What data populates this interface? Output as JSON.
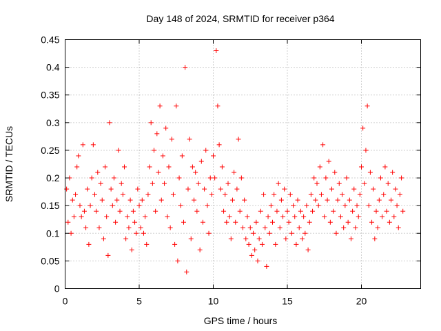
{
  "chart_data": {
    "type": "scatter",
    "title": "Day 148 of 2024, SRMTID for receiver p364",
    "xlabel": "GPS time / hours",
    "ylabel": "SRMTID / TECUs",
    "xlim": [
      0,
      24
    ],
    "ylim": [
      0,
      0.45
    ],
    "x_ticks": [
      0,
      5,
      10,
      15,
      20
    ],
    "x_tick_labels": [
      "0",
      "5",
      "10",
      "15",
      "20"
    ],
    "y_ticks": [
      0,
      0.05,
      0.1,
      0.15,
      0.2,
      0.25,
      0.3,
      0.35,
      0.4,
      0.45
    ],
    "y_tick_labels": [
      "0",
      "0.05",
      "0.1",
      "0.15",
      "0.2",
      "0.25",
      "0.3",
      "0.35",
      "0.4",
      "0.45"
    ],
    "grid": true,
    "marker": "plus",
    "color": "#ff0000",
    "series": [
      {
        "name": "SRMTID",
        "points": [
          [
            0.1,
            0.18
          ],
          [
            0.2,
            0.12
          ],
          [
            0.3,
            0.2
          ],
          [
            0.4,
            0.1
          ],
          [
            0.5,
            0.16
          ],
          [
            0.6,
            0.13
          ],
          [
            0.7,
            0.17
          ],
          [
            0.8,
            0.22
          ],
          [
            0.9,
            0.24
          ],
          [
            1.0,
            0.15
          ],
          [
            1.1,
            0.13
          ],
          [
            1.2,
            0.26
          ],
          [
            1.3,
            0.14
          ],
          [
            1.4,
            0.11
          ],
          [
            1.5,
            0.18
          ],
          [
            1.6,
            0.08
          ],
          [
            1.7,
            0.15
          ],
          [
            1.8,
            0.2
          ],
          [
            1.9,
            0.26
          ],
          [
            2.0,
            0.17
          ],
          [
            2.1,
            0.14
          ],
          [
            2.2,
            0.21
          ],
          [
            2.3,
            0.11
          ],
          [
            2.4,
            0.19
          ],
          [
            2.5,
            0.16
          ],
          [
            2.6,
            0.09
          ],
          [
            2.7,
            0.22
          ],
          [
            2.8,
            0.13
          ],
          [
            2.9,
            0.06
          ],
          [
            3.0,
            0.3
          ],
          [
            3.1,
            0.18
          ],
          [
            3.2,
            0.15
          ],
          [
            3.3,
            0.2
          ],
          [
            3.4,
            0.12
          ],
          [
            3.5,
            0.16
          ],
          [
            3.6,
            0.25
          ],
          [
            3.7,
            0.14
          ],
          [
            3.8,
            0.19
          ],
          [
            3.9,
            0.17
          ],
          [
            4.0,
            0.22
          ],
          [
            4.1,
            0.09
          ],
          [
            4.2,
            0.13
          ],
          [
            4.3,
            0.11
          ],
          [
            4.4,
            0.16
          ],
          [
            4.5,
            0.07
          ],
          [
            4.6,
            0.14
          ],
          [
            4.7,
            0.12
          ],
          [
            4.8,
            0.1
          ],
          [
            4.9,
            0.18
          ],
          [
            5.0,
            0.15
          ],
          [
            5.1,
            0.11
          ],
          [
            5.2,
            0.16
          ],
          [
            5.3,
            0.1
          ],
          [
            5.4,
            0.13
          ],
          [
            5.5,
            0.08
          ],
          [
            5.6,
            0.17
          ],
          [
            5.7,
            0.22
          ],
          [
            5.8,
            0.3
          ],
          [
            5.9,
            0.19
          ],
          [
            6.0,
            0.25
          ],
          [
            6.1,
            0.14
          ],
          [
            6.2,
            0.28
          ],
          [
            6.3,
            0.21
          ],
          [
            6.4,
            0.33
          ],
          [
            6.5,
            0.16
          ],
          [
            6.6,
            0.24
          ],
          [
            6.7,
            0.19
          ],
          [
            6.8,
            0.29
          ],
          [
            6.9,
            0.13
          ],
          [
            7.0,
            0.22
          ],
          [
            7.1,
            0.11
          ],
          [
            7.2,
            0.27
          ],
          [
            7.3,
            0.17
          ],
          [
            7.4,
            0.08
          ],
          [
            7.5,
            0.33
          ],
          [
            7.6,
            0.05
          ],
          [
            7.7,
            0.2
          ],
          [
            7.8,
            0.15
          ],
          [
            7.9,
            0.24
          ],
          [
            8.0,
            0.12
          ],
          [
            8.1,
            0.4
          ],
          [
            8.2,
            0.03
          ],
          [
            8.3,
            0.18
          ],
          [
            8.4,
            0.27
          ],
          [
            8.5,
            0.09
          ],
          [
            8.6,
            0.22
          ],
          [
            8.7,
            0.16
          ],
          [
            8.8,
            0.21
          ],
          [
            8.9,
            0.14
          ],
          [
            9.0,
            0.19
          ],
          [
            9.1,
            0.07
          ],
          [
            9.2,
            0.23
          ],
          [
            9.3,
            0.12
          ],
          [
            9.4,
            0.18
          ],
          [
            9.5,
            0.25
          ],
          [
            9.6,
            0.15
          ],
          [
            9.7,
            0.1
          ],
          [
            9.8,
            0.2
          ],
          [
            9.9,
            0.17
          ],
          [
            10.0,
            0.24
          ],
          [
            10.1,
            0.2
          ],
          [
            10.2,
            0.43
          ],
          [
            10.3,
            0.33
          ],
          [
            10.4,
            0.26
          ],
          [
            10.5,
            0.18
          ],
          [
            10.6,
            0.22
          ],
          [
            10.7,
            0.14
          ],
          [
            10.8,
            0.17
          ],
          [
            10.9,
            0.12
          ],
          [
            11.0,
            0.19
          ],
          [
            11.1,
            0.13
          ],
          [
            11.2,
            0.09
          ],
          [
            11.3,
            0.16
          ],
          [
            11.4,
            0.21
          ],
          [
            11.5,
            0.12
          ],
          [
            11.6,
            0.18
          ],
          [
            11.7,
            0.27
          ],
          [
            11.8,
            0.14
          ],
          [
            11.9,
            0.2
          ],
          [
            12.0,
            0.11
          ],
          [
            12.1,
            0.16
          ],
          [
            12.2,
            0.09
          ],
          [
            12.3,
            0.13
          ],
          [
            12.4,
            0.08
          ],
          [
            12.5,
            0.11
          ],
          [
            12.6,
            0.06
          ],
          [
            12.7,
            0.1
          ],
          [
            12.8,
            0.07
          ],
          [
            12.9,
            0.12
          ],
          [
            13.0,
            0.05
          ],
          [
            13.1,
            0.09
          ],
          [
            13.2,
            0.14
          ],
          [
            13.3,
            0.08
          ],
          [
            13.4,
            0.17
          ],
          [
            13.5,
            0.11
          ],
          [
            13.6,
            0.04
          ],
          [
            13.7,
            0.13
          ],
          [
            13.8,
            0.1
          ],
          [
            13.9,
            0.15
          ],
          [
            14.0,
            0.12
          ],
          [
            14.1,
            0.17
          ],
          [
            14.2,
            0.08
          ],
          [
            14.3,
            0.14
          ],
          [
            14.4,
            0.19
          ],
          [
            14.5,
            0.11
          ],
          [
            14.6,
            0.16
          ],
          [
            14.7,
            0.13
          ],
          [
            14.8,
            0.18
          ],
          [
            14.9,
            0.09
          ],
          [
            15.0,
            0.14
          ],
          [
            15.1,
            0.12
          ],
          [
            15.2,
            0.17
          ],
          [
            15.3,
            0.1
          ],
          [
            15.4,
            0.15
          ],
          [
            15.5,
            0.13
          ],
          [
            15.6,
            0.08
          ],
          [
            15.7,
            0.16
          ],
          [
            15.8,
            0.11
          ],
          [
            15.9,
            0.14
          ],
          [
            16.0,
            0.09
          ],
          [
            16.1,
            0.13
          ],
          [
            16.2,
            0.1
          ],
          [
            16.3,
            0.15
          ],
          [
            16.4,
            0.07
          ],
          [
            16.5,
            0.12
          ],
          [
            16.6,
            0.17
          ],
          [
            16.7,
            0.14
          ],
          [
            16.8,
            0.2
          ],
          [
            16.9,
            0.16
          ],
          [
            17.0,
            0.19
          ],
          [
            17.1,
            0.15
          ],
          [
            17.2,
            0.22
          ],
          [
            17.3,
            0.17
          ],
          [
            17.4,
            0.26
          ],
          [
            17.5,
            0.13
          ],
          [
            17.6,
            0.2
          ],
          [
            17.7,
            0.16
          ],
          [
            17.8,
            0.23
          ],
          [
            17.9,
            0.12
          ],
          [
            18.0,
            0.18
          ],
          [
            18.1,
            0.14
          ],
          [
            18.2,
            0.21
          ],
          [
            18.3,
            0.1
          ],
          [
            18.4,
            0.16
          ],
          [
            18.5,
            0.19
          ],
          [
            18.6,
            0.13
          ],
          [
            18.7,
            0.17
          ],
          [
            18.8,
            0.11
          ],
          [
            18.9,
            0.15
          ],
          [
            19.0,
            0.2
          ],
          [
            19.1,
            0.12
          ],
          [
            19.2,
            0.16
          ],
          [
            19.3,
            0.09
          ],
          [
            19.4,
            0.14
          ],
          [
            19.5,
            0.18
          ],
          [
            19.6,
            0.11
          ],
          [
            19.7,
            0.15
          ],
          [
            19.8,
            0.13
          ],
          [
            19.9,
            0.17
          ],
          [
            20.0,
            0.22
          ],
          [
            20.1,
            0.29
          ],
          [
            20.2,
            0.19
          ],
          [
            20.3,
            0.25
          ],
          [
            20.4,
            0.33
          ],
          [
            20.5,
            0.15
          ],
          [
            20.6,
            0.21
          ],
          [
            20.7,
            0.12
          ],
          [
            20.8,
            0.18
          ],
          [
            20.9,
            0.09
          ],
          [
            21.0,
            0.14
          ],
          [
            21.1,
            0.11
          ],
          [
            21.2,
            0.16
          ],
          [
            21.3,
            0.2
          ],
          [
            21.4,
            0.13
          ],
          [
            21.5,
            0.17
          ],
          [
            21.6,
            0.22
          ],
          [
            21.7,
            0.14
          ],
          [
            21.8,
            0.19
          ],
          [
            21.9,
            0.12
          ],
          [
            22.0,
            0.16
          ],
          [
            22.1,
            0.21
          ],
          [
            22.2,
            0.13
          ],
          [
            22.3,
            0.18
          ],
          [
            22.4,
            0.15
          ],
          [
            22.5,
            0.11
          ],
          [
            22.6,
            0.17
          ],
          [
            22.7,
            0.2
          ],
          [
            22.8,
            0.14
          ]
        ]
      }
    ]
  }
}
